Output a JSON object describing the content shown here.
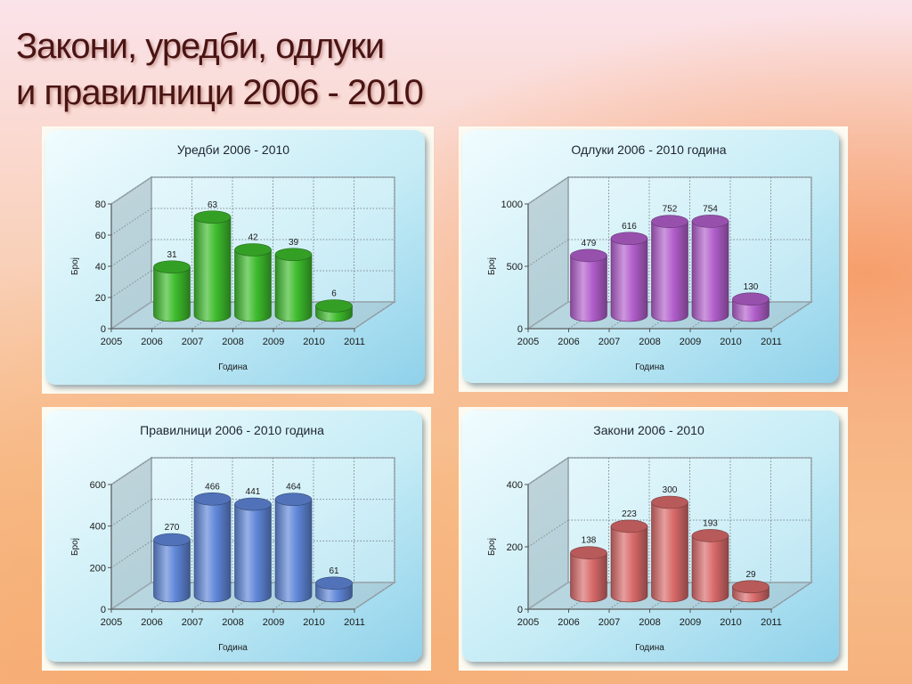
{
  "slide": {
    "title_line1": "Закони, уредби, одлуки",
    "title_line2": "и правилници 2006 - 2010"
  },
  "chart_data": [
    {
      "type": "bar",
      "title": "Уредби 2006 - 2010",
      "xlabel": "Година",
      "ylabel": "Број",
      "x_ticks": [
        "2005",
        "2006",
        "2007",
        "2008",
        "2009",
        "2010",
        "2011"
      ],
      "categories": [
        "2006",
        "2007",
        "2008",
        "2009",
        "2010"
      ],
      "values": [
        31,
        63,
        42,
        39,
        6
      ],
      "y_ticks": [
        "0",
        "20",
        "40",
        "60",
        "80"
      ],
      "ylim": [
        0,
        80
      ],
      "grid": true,
      "color": "#3dbb2c"
    },
    {
      "type": "bar",
      "title": "Одлуки 2006 - 2010 година",
      "xlabel": "Година",
      "ylabel": "Број",
      "x_ticks": [
        "2005",
        "2006",
        "2007",
        "2008",
        "2009",
        "2010",
        "2011"
      ],
      "categories": [
        "2006",
        "2007",
        "2008",
        "2009",
        "2010"
      ],
      "values": [
        479,
        616,
        752,
        754,
        130
      ],
      "y_ticks": [
        "0",
        "500",
        "1000"
      ],
      "ylim": [
        0,
        1000
      ],
      "grid": true,
      "color": "#b25fcc"
    },
    {
      "type": "bar",
      "title": "Правилници 2006 - 2010 година",
      "xlabel": "Година",
      "ylabel": "Број",
      "x_ticks": [
        "2005",
        "2006",
        "2007",
        "2008",
        "2009",
        "2010",
        "2011"
      ],
      "categories": [
        "2006",
        "2007",
        "2008",
        "2009",
        "2010"
      ],
      "values": [
        270,
        466,
        441,
        464,
        61
      ],
      "y_ticks": [
        "0",
        "200",
        "400",
        "600"
      ],
      "ylim": [
        0,
        600
      ],
      "grid": true,
      "color": "#5f86d8"
    },
    {
      "type": "bar",
      "title": "Закони 2006 - 2010",
      "xlabel": "Година",
      "ylabel": "Број",
      "x_ticks": [
        "2005",
        "2006",
        "2007",
        "2008",
        "2009",
        "2010",
        "2011"
      ],
      "categories": [
        "2006",
        "2007",
        "2008",
        "2009",
        "2010"
      ],
      "values": [
        138,
        223,
        300,
        193,
        29
      ],
      "y_ticks": [
        "0",
        "200",
        "400"
      ],
      "ylim": [
        0,
        400
      ],
      "grid": true,
      "color": "#d96a6a"
    }
  ]
}
